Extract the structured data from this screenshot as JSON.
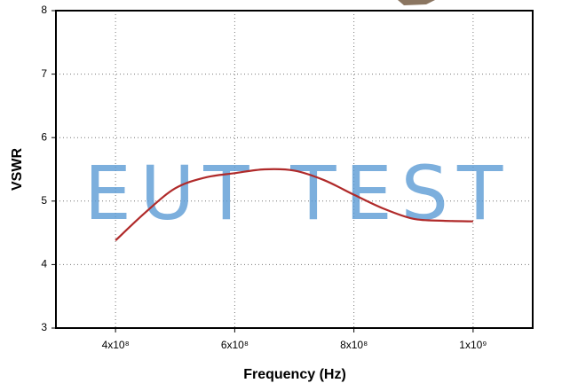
{
  "chart_data": {
    "type": "line",
    "xlabel": "Frequency (Hz)",
    "ylabel": "VSWR",
    "watermark": "EUT TEST",
    "x": [
      400000000,
      450000000,
      500000000,
      550000000,
      600000000,
      650000000,
      700000000,
      750000000,
      800000000,
      850000000,
      900000000,
      950000000,
      1000000000
    ],
    "values": [
      4.38,
      4.82,
      5.2,
      5.37,
      5.44,
      5.5,
      5.48,
      5.33,
      5.1,
      4.88,
      4.72,
      4.69,
      4.68
    ],
    "color": "#b02a2a",
    "xlim": [
      300000000,
      1100000000
    ],
    "xticks": [
      {
        "value": 400000000,
        "label": "4x10⁸"
      },
      {
        "value": 600000000,
        "label": "6x10⁸"
      },
      {
        "value": 800000000,
        "label": "8x10⁸"
      },
      {
        "value": 1000000000,
        "label": "1x10⁹"
      }
    ],
    "ylim": [
      3,
      8
    ],
    "yticks": [
      3,
      4,
      5,
      6,
      7,
      8
    ],
    "grid": true
  }
}
